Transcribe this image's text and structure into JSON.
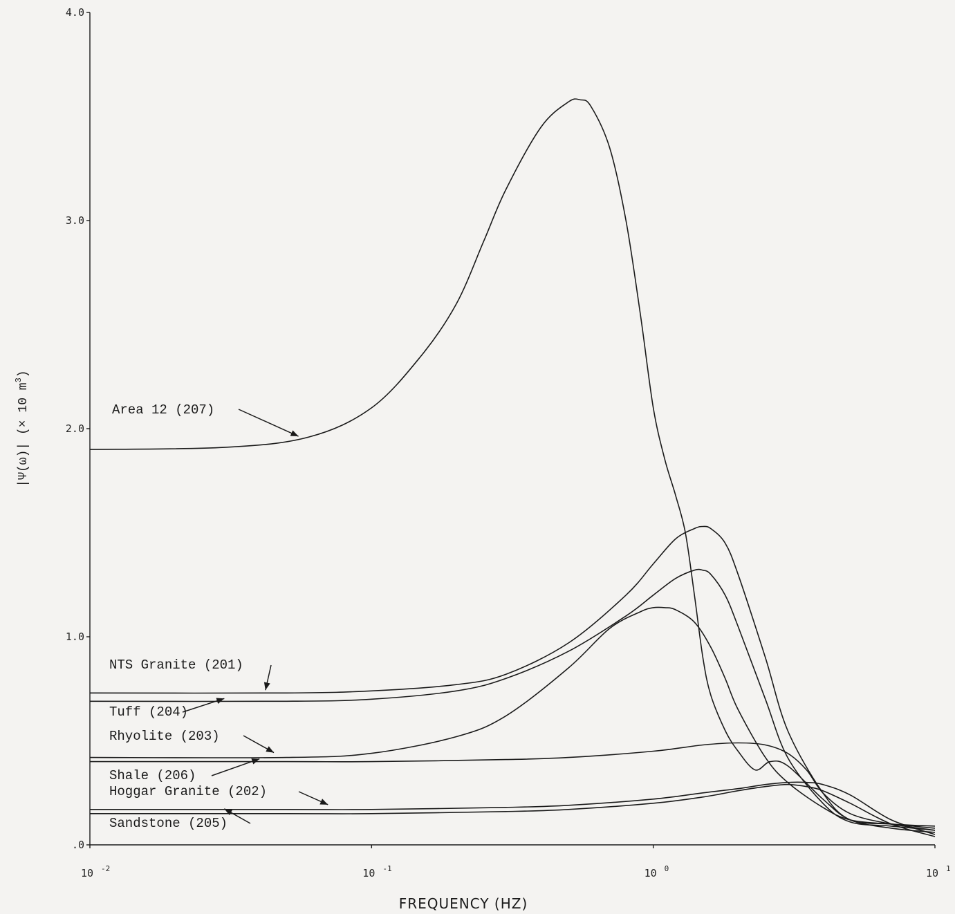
{
  "chart_data": {
    "type": "line",
    "xscale": "log",
    "xlim": [
      0.01,
      10
    ],
    "ylim": [
      0,
      4.0
    ],
    "grid": false,
    "xlabel": "FREQUENCY (HZ)",
    "ylabel": "|Ψ̂(ω)| (× 10 m³)",
    "ylabel_parts": {
      "main": "|Ψ(ω)| (× 10 m",
      "sup": "3",
      "close": ")"
    },
    "yticks": [
      ".0",
      "1.0",
      "2.0",
      "3.0",
      "4.0"
    ],
    "ytick_values": [
      0,
      1,
      2,
      3,
      4
    ],
    "xticks": [
      {
        "value": 0.01,
        "base": "10",
        "exp": "-2"
      },
      {
        "value": 0.1,
        "base": "10",
        "exp": "-1"
      },
      {
        "value": 1,
        "base": "10",
        "exp": "0"
      },
      {
        "value": 10,
        "base": "10",
        "exp": "1"
      }
    ],
    "series": [
      {
        "name": "Area 12 (207)",
        "x": [
          0.01,
          0.03,
          0.06,
          0.1,
          0.15,
          0.2,
          0.25,
          0.3,
          0.4,
          0.5,
          0.55,
          0.6,
          0.7,
          0.8,
          0.9,
          1.0,
          1.1,
          1.2,
          1.3,
          1.4,
          1.5,
          1.6,
          1.8,
          2.0,
          2.3,
          2.6,
          3.0,
          4.0,
          5.0,
          7.0,
          10.0
        ],
        "y": [
          1.9,
          1.91,
          1.96,
          2.1,
          2.35,
          2.6,
          2.9,
          3.15,
          3.45,
          3.57,
          3.58,
          3.55,
          3.35,
          3.0,
          2.55,
          2.1,
          1.85,
          1.68,
          1.5,
          1.2,
          0.9,
          0.72,
          0.55,
          0.45,
          0.36,
          0.4,
          0.38,
          0.22,
          0.12,
          0.08,
          0.06
        ]
      },
      {
        "name": "NTS Granite (201)",
        "x": [
          0.01,
          0.05,
          0.1,
          0.2,
          0.3,
          0.5,
          0.8,
          1.0,
          1.2,
          1.4,
          1.5,
          1.6,
          1.8,
          2.0,
          2.5,
          3.0,
          4.0,
          5.0,
          7.0,
          10.0
        ],
        "y": [
          0.73,
          0.73,
          0.74,
          0.77,
          0.82,
          0.97,
          1.2,
          1.35,
          1.47,
          1.52,
          1.53,
          1.52,
          1.45,
          1.3,
          0.9,
          0.55,
          0.25,
          0.12,
          0.1,
          0.08
        ]
      },
      {
        "name": "Tuff (204)",
        "x": [
          0.01,
          0.05,
          0.1,
          0.2,
          0.3,
          0.5,
          0.8,
          1.0,
          1.2,
          1.4,
          1.5,
          1.6,
          1.8,
          2.0,
          2.5,
          3.0,
          4.0,
          5.0,
          7.0,
          10.0
        ],
        "y": [
          0.69,
          0.69,
          0.7,
          0.74,
          0.8,
          0.93,
          1.1,
          1.2,
          1.28,
          1.32,
          1.32,
          1.3,
          1.2,
          1.05,
          0.7,
          0.42,
          0.2,
          0.11,
          0.09,
          0.07
        ]
      },
      {
        "name": "Rhyolite (203)",
        "x": [
          0.01,
          0.05,
          0.1,
          0.2,
          0.3,
          0.5,
          0.7,
          0.9,
          1.0,
          1.1,
          1.2,
          1.4,
          1.6,
          1.8,
          2.0,
          2.5,
          3.0,
          4.0,
          5.0,
          7.0,
          10.0
        ],
        "y": [
          0.42,
          0.42,
          0.44,
          0.52,
          0.62,
          0.85,
          1.04,
          1.12,
          1.14,
          1.14,
          1.13,
          1.07,
          0.95,
          0.8,
          0.65,
          0.42,
          0.3,
          0.18,
          0.12,
          0.1,
          0.09
        ]
      },
      {
        "name": "Shale (206)",
        "x": [
          0.01,
          0.05,
          0.1,
          0.3,
          0.5,
          1.0,
          1.5,
          2.0,
          2.5,
          3.0,
          3.5,
          4.0,
          5.0,
          7.0,
          10.0
        ],
        "y": [
          0.4,
          0.4,
          0.4,
          0.41,
          0.42,
          0.45,
          0.48,
          0.49,
          0.48,
          0.44,
          0.36,
          0.25,
          0.15,
          0.1,
          0.07
        ]
      },
      {
        "name": "Hoggar Granite (202)",
        "x": [
          0.01,
          0.05,
          0.1,
          0.3,
          0.5,
          1.0,
          1.5,
          2.0,
          2.5,
          3.0,
          3.5,
          4.0,
          5.0,
          7.0,
          10.0
        ],
        "y": [
          0.17,
          0.17,
          0.17,
          0.18,
          0.19,
          0.22,
          0.25,
          0.27,
          0.29,
          0.3,
          0.3,
          0.29,
          0.24,
          0.12,
          0.05
        ]
      },
      {
        "name": "Sandstone (205)",
        "x": [
          0.01,
          0.05,
          0.1,
          0.3,
          0.5,
          1.0,
          1.5,
          2.0,
          2.5,
          3.0,
          3.5,
          4.0,
          5.0,
          7.0,
          10.0
        ],
        "y": [
          0.15,
          0.15,
          0.15,
          0.16,
          0.17,
          0.2,
          0.23,
          0.26,
          0.28,
          0.29,
          0.28,
          0.26,
          0.2,
          0.1,
          0.04
        ]
      }
    ],
    "annotations": [
      {
        "text": "Area 12 (207)",
        "series": 0,
        "arrow_to_x": 0.055,
        "arrow_to_y": 1.95
      },
      {
        "text": "NTS Granite (201)",
        "series": 1,
        "arrow_to_x": 0.042,
        "arrow_to_y": 0.73
      },
      {
        "text": "Tuff (204)",
        "series": 2,
        "arrow_to_x": 0.03,
        "arrow_to_y": 0.69
      },
      {
        "text": "Rhyolite (203)",
        "series": 3,
        "arrow_to_x": 0.045,
        "arrow_to_y": 0.43
      },
      {
        "text": "Shale (206)",
        "series": 4,
        "arrow_to_x": 0.04,
        "arrow_to_y": 0.4
      },
      {
        "text": "Hoggar Granite (202)",
        "series": 5,
        "arrow_to_x": 0.07,
        "arrow_to_y": 0.18
      },
      {
        "text": "Sandstone (205)",
        "series": 6,
        "arrow_to_x": 0.03,
        "arrow_to_y": 0.16
      }
    ]
  }
}
